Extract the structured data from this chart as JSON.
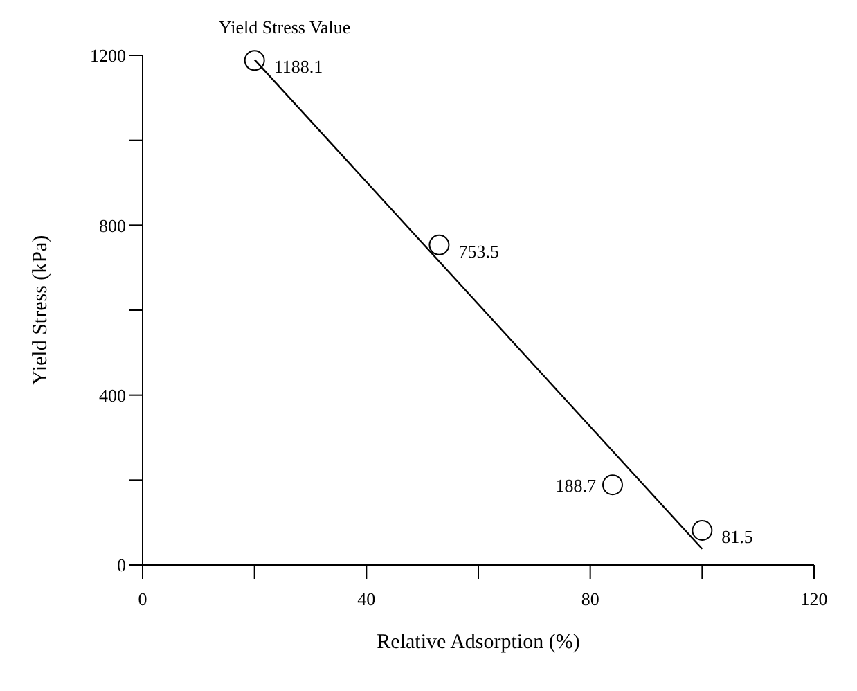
{
  "chart_data": {
    "type": "scatter",
    "title": "Yield Stress Value",
    "xlabel": "Relative Adsorption (%)",
    "ylabel": "Yield Stress (kPa)",
    "xlim": [
      0,
      120
    ],
    "ylim": [
      0,
      1200
    ],
    "xticks": [
      0,
      {
        "value": 20,
        "label": null
      },
      40,
      {
        "value": 60,
        "label": null
      },
      80,
      {
        "value": 100,
        "label": null
      },
      120
    ],
    "yticks": [
      0,
      {
        "value": 200,
        "label": null
      },
      400,
      {
        "value": 600,
        "label": null
      },
      800,
      {
        "value": 1000,
        "label": null
      },
      1200
    ],
    "grid": false,
    "legend": false,
    "series": [
      {
        "color": "#000000",
        "marker": "circle",
        "x": [
          20,
          53,
          84,
          100
        ],
        "values": [
          1188.1,
          753.5,
          188.7,
          81.5
        ],
        "value_labels": [
          "1188.1",
          "753.5",
          "188.7",
          "81.5"
        ]
      },
      {
        "type": "line",
        "color": "#000000",
        "marker": "none",
        "line_style": "solid",
        "x": [
          20,
          100
        ],
        "values": [
          1190,
          38
        ]
      }
    ]
  }
}
